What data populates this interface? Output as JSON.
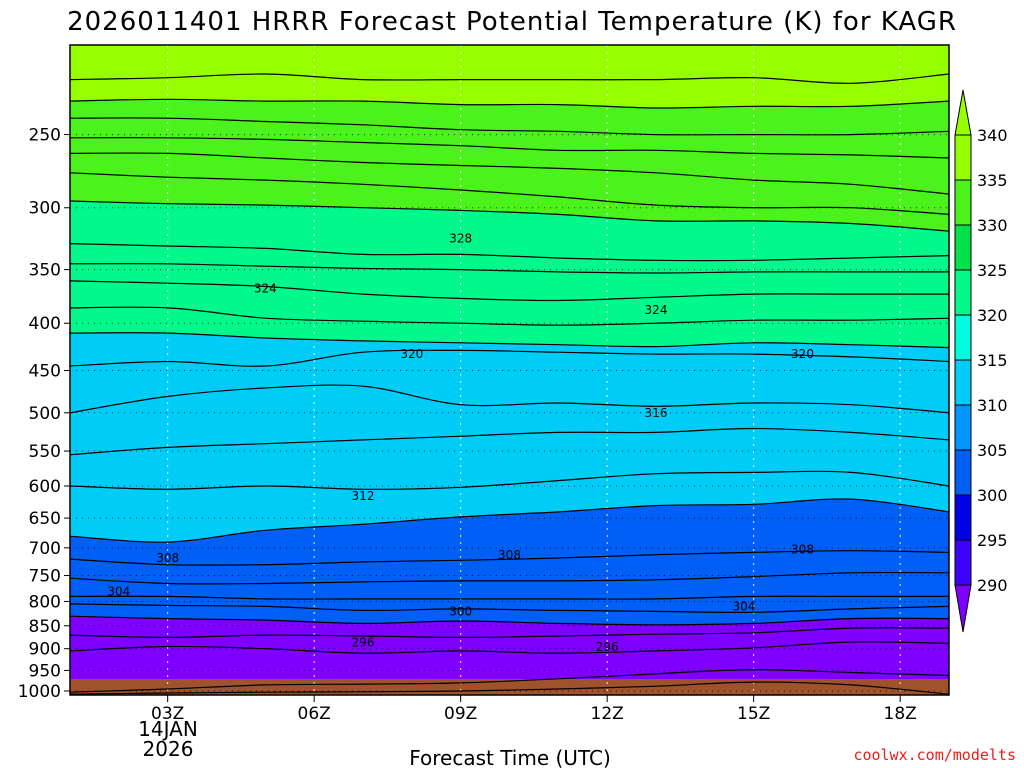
{
  "title": "2026011401 HRRR Forecast Potential Temperature (K) for KAGR",
  "credit": "coolwx.com/modelts",
  "xlabel": "Forecast Time (UTC)",
  "date_label": {
    "day": "14JAN",
    "year": "2026"
  },
  "colors": {
    "ground": "#a0522d",
    "fills": [
      "#7f00ff",
      "#3c00ff",
      "#0000e6",
      "#005ff5",
      "#0096ff",
      "#00cdf7",
      "#00fde0",
      "#00f98a",
      "#00e14a",
      "#4bf21b",
      "#97fe00"
    ],
    "contour": "#000000"
  },
  "chart_data": {
    "type": "heatmap",
    "title": "2026011401 HRRR Forecast Potential Temperature (K) for KAGR",
    "xlabel": "Forecast Time (UTC)",
    "ylabel": "",
    "x_unit": "hours from 00Z 14JAN2026",
    "xlim": [
      1,
      19
    ],
    "ylim": [
      1010,
      200
    ],
    "y_scale": "log",
    "y_ticks": [
      250,
      300,
      350,
      400,
      450,
      500,
      550,
      600,
      650,
      700,
      750,
      800,
      850,
      900,
      950,
      1000
    ],
    "x_ticks": [
      {
        "hour": 3,
        "label": "03Z"
      },
      {
        "hour": 6,
        "label": "06Z"
      },
      {
        "hour": 9,
        "label": "09Z"
      },
      {
        "hour": 12,
        "label": "12Z"
      },
      {
        "hour": 15,
        "label": "15Z"
      },
      {
        "hour": 18,
        "label": "18Z"
      }
    ],
    "colorbar": {
      "levels": [
        290,
        295,
        300,
        305,
        310,
        315,
        320,
        325,
        330,
        335,
        340
      ],
      "extend": "both"
    },
    "isentrope_x": [
      1,
      3,
      5,
      7,
      9,
      11,
      13,
      15,
      17,
      19
    ],
    "isentropes": [
      {
        "theta": 292,
        "p": [
          1008,
          1005,
          1003,
          1002,
          1000,
          995,
          988,
          978,
          985,
          1008
        ]
      },
      {
        "theta": 294,
        "p": [
          1003,
          995,
          985,
          983,
          980,
          970,
          958,
          948,
          955,
          962
        ]
      },
      {
        "theta": 296,
        "p": [
          905,
          895,
          900,
          910,
          905,
          910,
          905,
          898,
          885,
          888
        ]
      },
      {
        "theta": 298,
        "p": [
          870,
          875,
          870,
          872,
          875,
          872,
          868,
          865,
          855,
          855
        ]
      },
      {
        "theta": 300,
        "p": [
          830,
          835,
          838,
          845,
          840,
          845,
          848,
          845,
          835,
          835
        ]
      },
      {
        "theta": 302,
        "p": [
          805,
          808,
          810,
          818,
          815,
          818,
          820,
          822,
          815,
          810
        ]
      },
      {
        "theta": 304,
        "p": [
          790,
          790,
          795,
          795,
          795,
          795,
          795,
          790,
          790,
          790
        ]
      },
      {
        "theta": 306,
        "p": [
          755,
          765,
          765,
          762,
          760,
          760,
          758,
          752,
          745,
          745
        ]
      },
      {
        "theta": 308,
        "p": [
          720,
          730,
          730,
          725,
          722,
          718,
          712,
          708,
          705,
          708
        ]
      },
      {
        "theta": 310,
        "p": [
          680,
          690,
          670,
          660,
          648,
          640,
          630,
          628,
          620,
          640
        ]
      },
      {
        "theta": 312,
        "p": [
          600,
          605,
          600,
          605,
          602,
          592,
          582,
          580,
          580,
          600
        ]
      },
      {
        "theta": 314,
        "p": [
          555,
          545,
          540,
          535,
          530,
          525,
          525,
          520,
          525,
          535
        ]
      },
      {
        "theta": 316,
        "p": [
          500,
          480,
          470,
          468,
          490,
          488,
          492,
          488,
          490,
          500
        ]
      },
      {
        "theta": 318,
        "p": [
          445,
          440,
          445,
          430,
          428,
          430,
          432,
          432,
          435,
          440
        ]
      },
      {
        "theta": 320,
        "p": [
          410,
          410,
          415,
          418,
          420,
          422,
          424,
          420,
          422,
          425
        ]
      },
      {
        "theta": 322,
        "p": [
          385,
          385,
          395,
          398,
          400,
          402,
          400,
          397,
          397,
          395
        ]
      },
      {
        "theta": 324,
        "p": [
          360,
          362,
          365,
          372,
          376,
          378,
          375,
          372,
          372,
          372
        ]
      },
      {
        "theta": 326,
        "p": [
          345,
          345,
          347,
          349,
          350,
          352,
          353,
          352,
          352,
          352
        ]
      },
      {
        "theta": 328,
        "p": [
          328,
          330,
          332,
          337,
          337,
          340,
          342,
          342,
          340,
          338
        ]
      },
      {
        "theta": 330,
        "p": [
          295,
          297,
          298,
          300,
          302,
          305,
          310,
          310,
          312,
          318
        ]
      },
      {
        "theta": 332,
        "p": [
          275,
          278,
          280,
          283,
          287,
          292,
          298,
          300,
          300,
          305
        ]
      },
      {
        "theta": 334,
        "p": [
          262,
          262,
          265,
          268,
          270,
          272,
          275,
          280,
          283,
          290
        ]
      },
      {
        "theta": 336,
        "p": [
          252,
          252,
          253,
          255,
          257,
          260,
          260,
          262,
          263,
          265
        ]
      },
      {
        "theta": 338,
        "p": [
          240,
          240,
          242,
          244,
          247,
          248,
          250,
          250,
          250,
          248
        ]
      },
      {
        "theta": 340,
        "p": [
          230,
          229,
          230,
          230,
          232,
          232,
          234,
          233,
          233,
          230
        ]
      },
      {
        "theta": 342,
        "p": [
          218,
          217,
          215,
          218,
          218,
          218,
          218,
          217,
          220,
          215
        ]
      }
    ],
    "contour_labels": [
      {
        "text": "328",
        "x": 9.0,
        "p": 324
      },
      {
        "text": "324",
        "x": 5.0,
        "p": 367
      },
      {
        "text": "324",
        "x": 13.0,
        "p": 387
      },
      {
        "text": "320",
        "x": 8.0,
        "p": 432
      },
      {
        "text": "320",
        "x": 16.0,
        "p": 432
      },
      {
        "text": "316",
        "x": 13.0,
        "p": 500
      },
      {
        "text": "312",
        "x": 7.0,
        "p": 615
      },
      {
        "text": "308",
        "x": 3.0,
        "p": 718
      },
      {
        "text": "308",
        "x": 10.0,
        "p": 713
      },
      {
        "text": "308",
        "x": 16.0,
        "p": 703
      },
      {
        "text": "304",
        "x": 2.0,
        "p": 780
      },
      {
        "text": "304",
        "x": 14.8,
        "p": 810
      },
      {
        "text": "300",
        "x": 9.0,
        "p": 820
      },
      {
        "text": "296",
        "x": 7.0,
        "p": 886
      },
      {
        "text": "296",
        "x": 12.0,
        "p": 896
      }
    ]
  }
}
